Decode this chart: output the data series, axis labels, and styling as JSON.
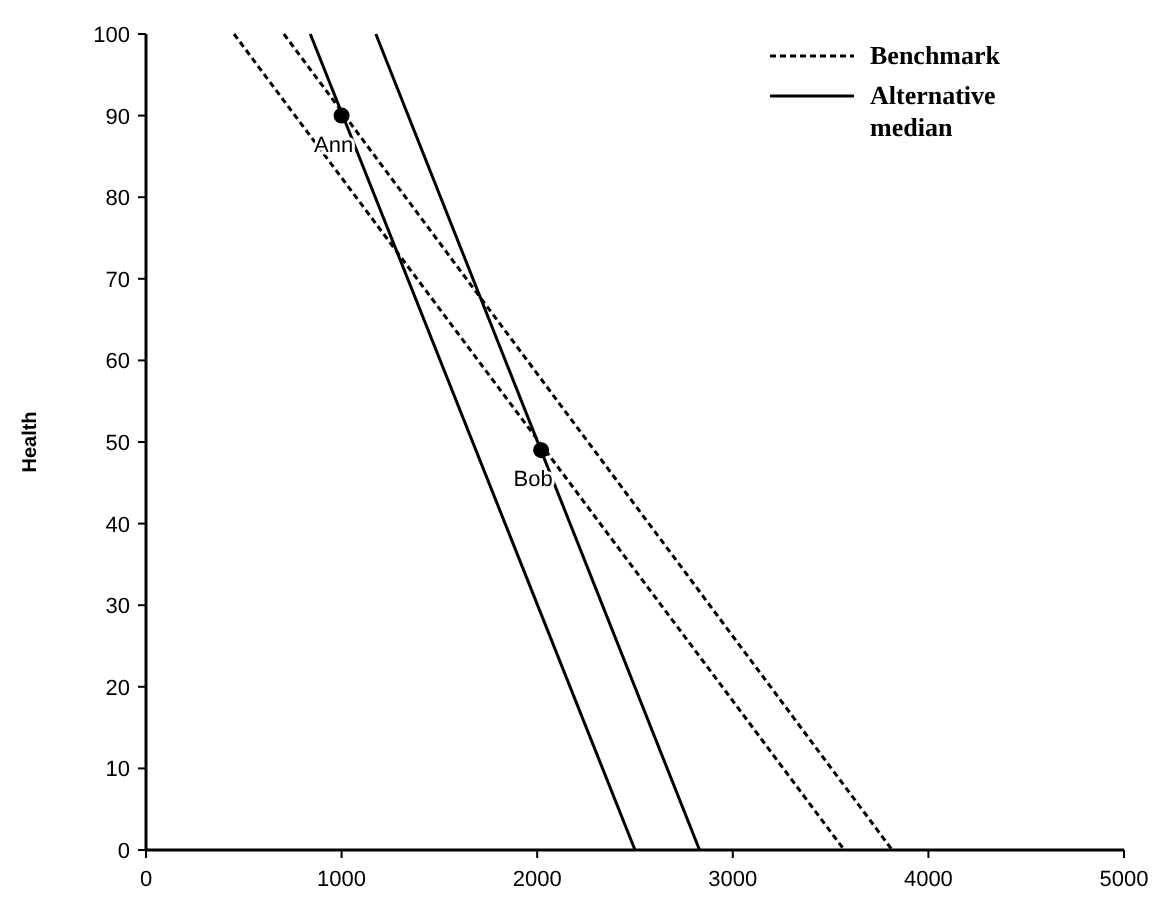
{
  "chart_data": {
    "type": "line",
    "ylabel": "Health",
    "xlim": [
      0,
      5000
    ],
    "ylim": [
      0,
      100
    ],
    "xticks": [
      0,
      1000,
      2000,
      3000,
      4000,
      5000
    ],
    "yticks": [
      0,
      10,
      20,
      30,
      40,
      50,
      60,
      70,
      80,
      90,
      100
    ],
    "grid": false,
    "legend": "top right",
    "marker": "none",
    "series": [
      {
        "name": "Benchmark",
        "color": "#000000",
        "line_style": "dashed",
        "x": [
          450,
          3570
        ],
        "values": [
          100,
          0
        ]
      },
      {
        "color": "#000000",
        "line_style": "dashed",
        "x": [
          705,
          3815
        ],
        "values": [
          100,
          0
        ]
      },
      {
        "name": "Alternative median",
        "color": "#000000",
        "line_style": "solid",
        "x": [
          840,
          2500
        ],
        "values": [
          100,
          0
        ]
      },
      {
        "color": "#000000",
        "line_style": "solid",
        "x": [
          1175,
          2830
        ],
        "values": [
          100,
          0
        ]
      },
      {
        "type": "scatter",
        "color": "#000000",
        "marker": "circle",
        "x": [
          1000,
          2020
        ],
        "values": [
          90,
          49
        ]
      }
    ],
    "annotations": [
      {
        "text": "Ann",
        "x": 1000,
        "y": 90
      },
      {
        "text": "Bob",
        "x": 2020,
        "y": 49
      }
    ]
  }
}
